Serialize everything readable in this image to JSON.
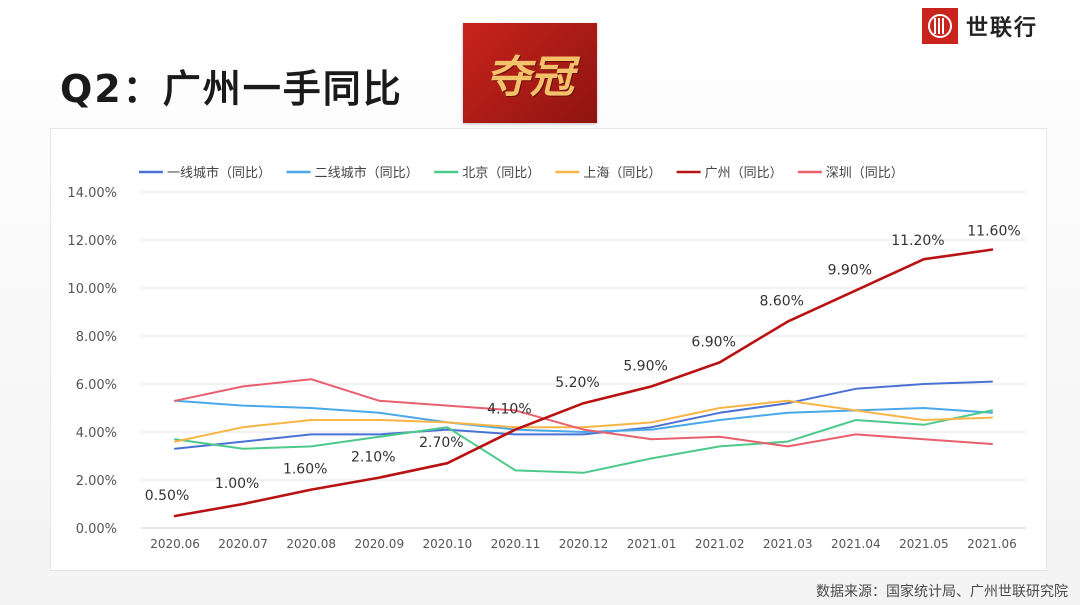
{
  "header": {
    "title": "Q2：广州一手同比",
    "badge": "夺冠",
    "logo_text": "世联行"
  },
  "footer": {
    "source": "数据来源：国家统计局、广州世联研究院"
  },
  "colors": {
    "accent": "#c8231c",
    "series": [
      "#4a72d4",
      "#4aa8e8",
      "#4dc98c",
      "#f7b548",
      "#b81212",
      "#e8606e"
    ]
  },
  "chart_data": {
    "type": "line",
    "legend_position": "top",
    "grid": true,
    "ylim": [
      0,
      14
    ],
    "y_ticks": [
      "0.00%",
      "2.00%",
      "4.00%",
      "6.00%",
      "8.00%",
      "10.00%",
      "12.00%",
      "14.00%"
    ],
    "categories": [
      "2020.06",
      "2020.07",
      "2020.08",
      "2020.09",
      "2020.10",
      "2020.11",
      "2020.12",
      "2021.01",
      "2021.02",
      "2021.03",
      "2021.04",
      "2021.05",
      "2021.06"
    ],
    "series": [
      {
        "name": "一线城市（同比）",
        "values": [
          3.3,
          3.6,
          3.9,
          3.9,
          4.1,
          3.9,
          3.9,
          4.2,
          4.8,
          5.2,
          5.8,
          6.0,
          6.1
        ]
      },
      {
        "name": "二线城市（同比）",
        "values": [
          5.3,
          5.1,
          5.0,
          4.8,
          4.4,
          4.1,
          4.0,
          4.1,
          4.5,
          4.8,
          4.9,
          5.0,
          4.8
        ]
      },
      {
        "name": "北京（同比）",
        "values": [
          3.7,
          3.3,
          3.4,
          3.8,
          4.2,
          2.4,
          2.3,
          2.9,
          3.4,
          3.6,
          4.5,
          4.3,
          4.9
        ]
      },
      {
        "name": "上海（同比）",
        "values": [
          3.6,
          4.2,
          4.5,
          4.5,
          4.4,
          4.2,
          4.2,
          4.4,
          5.0,
          5.3,
          4.9,
          4.5,
          4.6
        ]
      },
      {
        "name": "广州（同比）",
        "values": [
          0.5,
          1.0,
          1.6,
          2.1,
          2.7,
          4.1,
          5.2,
          5.9,
          6.9,
          8.6,
          9.9,
          11.2,
          11.6
        ],
        "labels": [
          "0.50%",
          "1.00%",
          "1.60%",
          "2.10%",
          "2.70%",
          "4.10%",
          "5.20%",
          "5.90%",
          "6.90%",
          "8.60%",
          "9.90%",
          "11.20%",
          "11.60%"
        ]
      },
      {
        "name": "深圳（同比）",
        "values": [
          5.3,
          5.9,
          6.2,
          5.3,
          5.1,
          4.9,
          4.1,
          3.7,
          3.8,
          3.4,
          3.9,
          3.7,
          3.5
        ]
      }
    ]
  }
}
